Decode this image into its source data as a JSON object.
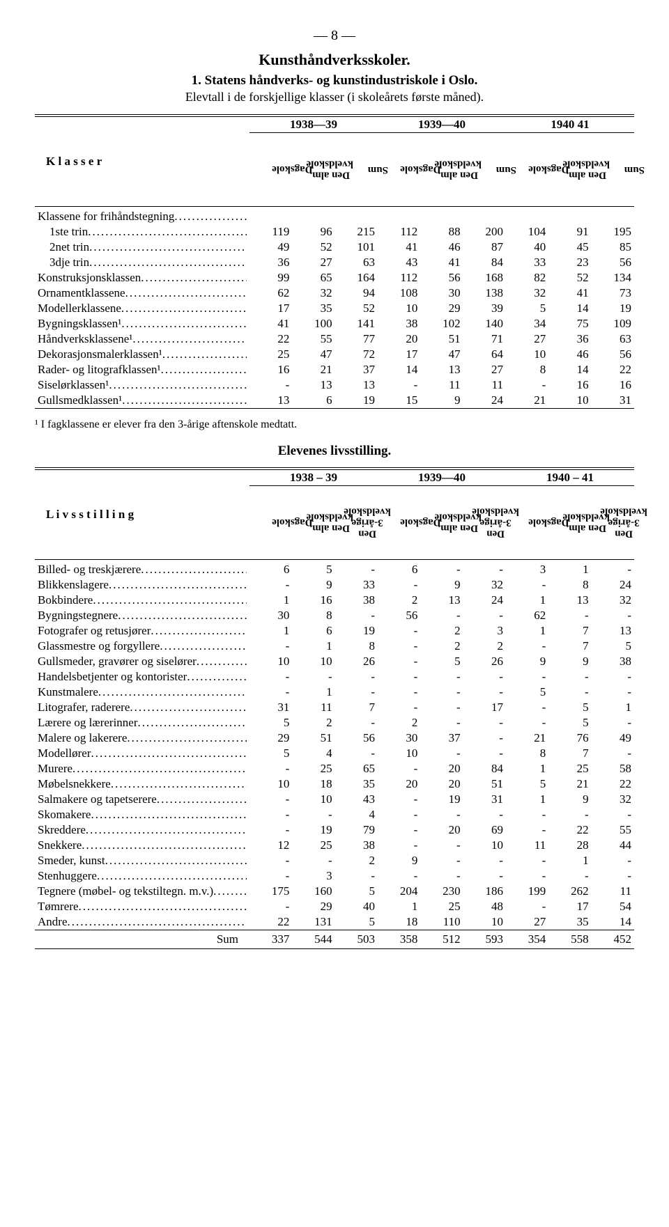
{
  "page_number": "8",
  "section_title": "Kunsthåndverksskoler.",
  "subtitle_1": "1. Statens håndverks- og kunstindustriskole i Oslo.",
  "subtitle_2": "Elevtall i de forskjellige klasser (i skoleårets første måned).",
  "table1": {
    "year_groups": [
      "1938—39",
      "1939—40",
      "1940 41"
    ],
    "row_header": "Klasser",
    "col_labels": [
      "Dagskole",
      "Den alm.\nkveldskole",
      "Sum",
      "Dagskole",
      "Den alm.\nkveldskole",
      "Sum",
      "Dagskole",
      "Den alm.\nkveldskole",
      "Sum"
    ],
    "rows": [
      {
        "label": "Klassene for frihåndstegning",
        "vals": [
          "",
          "",
          "",
          "",
          "",
          "",
          "",
          "",
          ""
        ],
        "nodots": false
      },
      {
        "label": "1ste trin",
        "vals": [
          119,
          96,
          215,
          112,
          88,
          200,
          104,
          91,
          195
        ],
        "indent": true
      },
      {
        "label": "2net trin",
        "vals": [
          49,
          52,
          101,
          41,
          46,
          87,
          40,
          45,
          85
        ],
        "indent": true
      },
      {
        "label": "3dje trin",
        "vals": [
          36,
          27,
          63,
          43,
          41,
          84,
          33,
          23,
          56
        ],
        "indent": true
      },
      {
        "label": "Konstruksjonsklassen",
        "vals": [
          99,
          65,
          164,
          112,
          56,
          168,
          82,
          52,
          134
        ]
      },
      {
        "label": "Ornamentklassene",
        "vals": [
          62,
          32,
          94,
          108,
          30,
          138,
          32,
          41,
          73
        ]
      },
      {
        "label": "Modellerklassene",
        "vals": [
          17,
          35,
          52,
          10,
          29,
          39,
          5,
          14,
          19
        ]
      },
      {
        "label": "Bygningsklassen¹",
        "vals": [
          41,
          100,
          141,
          38,
          102,
          140,
          34,
          75,
          109
        ]
      },
      {
        "label": "Håndverksklassene¹",
        "vals": [
          22,
          55,
          77,
          20,
          51,
          71,
          27,
          36,
          63
        ]
      },
      {
        "label": "Dekorasjonsmalerklassen¹",
        "vals": [
          25,
          47,
          72,
          17,
          47,
          64,
          10,
          46,
          56
        ]
      },
      {
        "label": "Rader- og litografklassen¹",
        "vals": [
          16,
          21,
          37,
          14,
          13,
          27,
          8,
          14,
          22
        ]
      },
      {
        "label": "Siselørklassen¹",
        "vals": [
          "-",
          13,
          13,
          "-",
          11,
          11,
          "-",
          16,
          16
        ]
      },
      {
        "label": "Gullsmedklassen¹",
        "vals": [
          13,
          6,
          19,
          15,
          9,
          24,
          21,
          10,
          31
        ]
      }
    ]
  },
  "footnote": "¹ I fagklassene er elever fra den 3-årige aftenskole medtatt.",
  "section2_title": "Elevenes livsstilling.",
  "table2": {
    "year_groups": [
      "1938 – 39",
      "1939—40",
      "1940 – 41"
    ],
    "row_header": "Livsstilling",
    "col_labels": [
      "Dagskole",
      "Den alm.\nkveldskole",
      "Den\n3-årige\nkveldskole",
      "Dagskole",
      "Den alm.\nkveldskole",
      "Den\n3-årige\nkveldskole",
      "Dagskole",
      "Den alm.\nkveldskole",
      "Den\n3-årige\nkveldskole"
    ],
    "rows": [
      {
        "label": "Billed- og treskjærere",
        "vals": [
          6,
          5,
          "-",
          6,
          "-",
          "-",
          3,
          1,
          "-"
        ]
      },
      {
        "label": "Blikkenslagere",
        "vals": [
          "-",
          9,
          33,
          "-",
          9,
          32,
          "-",
          8,
          24
        ]
      },
      {
        "label": "Bokbindere",
        "vals": [
          1,
          16,
          38,
          2,
          13,
          24,
          1,
          13,
          32
        ]
      },
      {
        "label": "Bygningstegnere",
        "vals": [
          30,
          8,
          "-",
          56,
          "-",
          "-",
          62,
          "-",
          "-"
        ]
      },
      {
        "label": "Fotografer og retusjører",
        "vals": [
          1,
          6,
          19,
          "-",
          2,
          3,
          1,
          7,
          13
        ]
      },
      {
        "label": "Glassmestre og forgyllere",
        "vals": [
          "-",
          1,
          8,
          "-",
          2,
          2,
          "-",
          7,
          5
        ]
      },
      {
        "label": "Gullsmeder, gravører og siselører",
        "vals": [
          10,
          10,
          26,
          "-",
          5,
          26,
          9,
          9,
          38
        ]
      },
      {
        "label": "Handelsbetjenter og kontorister",
        "vals": [
          "-",
          "-",
          "-",
          "-",
          "-",
          "-",
          "-",
          "-",
          "-"
        ]
      },
      {
        "label": "Kunstmalere",
        "vals": [
          "-",
          1,
          "-",
          "-",
          "-",
          "-",
          5,
          "-",
          "-"
        ]
      },
      {
        "label": "Litografer, raderere",
        "vals": [
          31,
          11,
          7,
          "-",
          "-",
          17,
          "-",
          5,
          1
        ]
      },
      {
        "label": "Lærere og lærerinner",
        "vals": [
          5,
          2,
          "-",
          2,
          "-",
          "-",
          "-",
          5,
          "-"
        ]
      },
      {
        "label": "Malere og lakerere",
        "vals": [
          29,
          51,
          56,
          30,
          37,
          "-",
          21,
          76,
          49
        ]
      },
      {
        "label": "Modellører",
        "vals": [
          5,
          4,
          "-",
          10,
          "-",
          "-",
          8,
          7,
          "-"
        ]
      },
      {
        "label": "Murere",
        "vals": [
          "-",
          25,
          65,
          "-",
          20,
          84,
          1,
          25,
          58
        ]
      },
      {
        "label": "Møbelsnekkere",
        "vals": [
          10,
          18,
          35,
          20,
          20,
          51,
          5,
          21,
          22
        ]
      },
      {
        "label": "Salmakere og tapetserere",
        "vals": [
          "-",
          10,
          43,
          "-",
          19,
          31,
          1,
          9,
          32
        ]
      },
      {
        "label": "Skomakere",
        "vals": [
          "-",
          "-",
          4,
          "-",
          "-",
          "-",
          "-",
          "-",
          "-"
        ]
      },
      {
        "label": "Skreddere",
        "vals": [
          "-",
          19,
          79,
          "-",
          20,
          69,
          "-",
          22,
          55
        ]
      },
      {
        "label": "Snekkere",
        "vals": [
          12,
          25,
          38,
          "-",
          "-",
          10,
          11,
          28,
          44
        ]
      },
      {
        "label": "Smeder, kunst",
        "vals": [
          "-",
          "-",
          2,
          9,
          "-",
          "-",
          "-",
          1,
          "-"
        ]
      },
      {
        "label": "Stenhuggere",
        "vals": [
          "-",
          3,
          "-",
          "-",
          "-",
          "-",
          "-",
          "-",
          "-"
        ]
      },
      {
        "label": "Tegnere (møbel- og tekstiltegn. m.v.)",
        "vals": [
          175,
          160,
          5,
          204,
          230,
          186,
          199,
          262,
          11
        ]
      },
      {
        "label": "Tømrere",
        "vals": [
          "-",
          29,
          40,
          1,
          25,
          48,
          "-",
          17,
          54
        ]
      },
      {
        "label": "Andre",
        "vals": [
          22,
          131,
          5,
          18,
          110,
          10,
          27,
          35,
          14
        ]
      }
    ],
    "sum_label": "Sum",
    "sum_vals": [
      337,
      544,
      503,
      358,
      512,
      593,
      354,
      558,
      452
    ]
  }
}
